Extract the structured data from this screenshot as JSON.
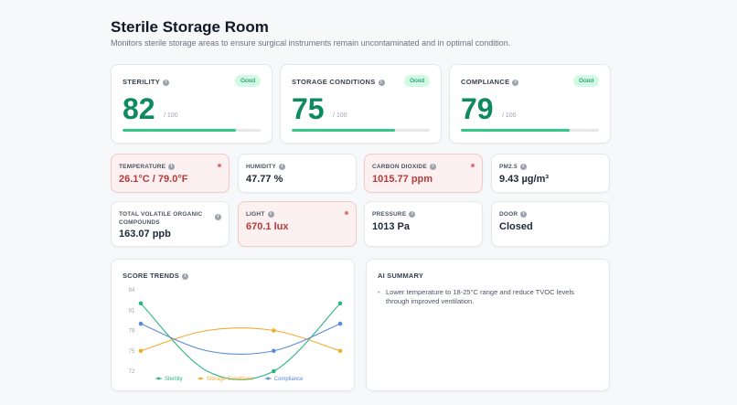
{
  "header": {
    "title": "Sterile Storage Room",
    "subtitle": "Monitors sterile storage areas to ensure surgical instruments remain uncontaminated and in optimal condition."
  },
  "scores": [
    {
      "label": "STERILITY",
      "value": "82",
      "max": "/ 100",
      "status": "Good",
      "fill": 0.82
    },
    {
      "label": "STORAGE CONDITIONS",
      "value": "75",
      "max": "/ 100",
      "status": "Good",
      "fill": 0.75
    },
    {
      "label": "COMPLIANCE",
      "value": "79",
      "max": "/ 100",
      "status": "Good",
      "fill": 0.79
    }
  ],
  "metrics": [
    {
      "label": "TEMPERATURE",
      "value": "26.1°C / 79.0°F",
      "alert": true
    },
    {
      "label": "HUMIDITY",
      "value": "47.77 %",
      "alert": false
    },
    {
      "label": "CARBON DIOXIDE",
      "value": "1015.77 ppm",
      "alert": true
    },
    {
      "label": "PM2.5",
      "value": "9.43 µg/m³",
      "alert": false
    },
    {
      "label": "TOTAL VOLATILE ORGANIC COMPOUNDS",
      "value": "163.07 ppb",
      "alert": false
    },
    {
      "label": "LIGHT",
      "value": "670.1 lux",
      "alert": true
    },
    {
      "label": "PRESSURE",
      "value": "1013 Pa",
      "alert": false
    },
    {
      "label": "DOOR",
      "value": "Closed",
      "alert": false
    }
  ],
  "trends": {
    "title": "SCORE TRENDS",
    "chart_data": {
      "type": "line",
      "title": "",
      "x": [
        1,
        2,
        3,
        4
      ],
      "ylim": [
        72,
        84
      ],
      "yticks": [
        72,
        75,
        78,
        81,
        84
      ],
      "series": [
        {
          "name": "Sterility",
          "values": [
            82,
            72,
            72,
            82
          ],
          "color": "#2fb585"
        },
        {
          "name": "Storage Conditions",
          "values": [
            75,
            78,
            78,
            75
          ],
          "color": "#f0ad2e"
        },
        {
          "name": "Compliance",
          "values": [
            79,
            75,
            75,
            79
          ],
          "color": "#5b8bd9"
        }
      ],
      "legend": "bottom"
    }
  },
  "summary": {
    "title": "AI SUMMARY",
    "items": [
      "Lower temperature to 18-25°C range and reduce TVOC levels through improved ventilation."
    ]
  },
  "colors": {
    "good": "#0f8a5f",
    "alert": "#b93a3a",
    "bar": "#34c78a"
  }
}
